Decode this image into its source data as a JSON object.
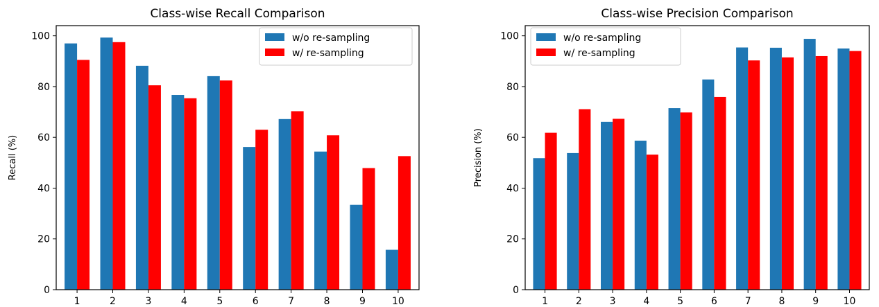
{
  "chart_data": [
    {
      "type": "bar",
      "title": "Class-wise Recall Comparison",
      "xlabel": "",
      "ylabel": "Recall (%)",
      "categories": [
        "1",
        "2",
        "3",
        "4",
        "5",
        "6",
        "7",
        "8",
        "9",
        "10"
      ],
      "ylim": [
        0,
        104
      ],
      "yticks": [
        "0",
        "20",
        "40",
        "60",
        "80",
        "100"
      ],
      "legend_position": "upper right",
      "series": [
        {
          "name": "w/o re-sampling",
          "color": "#1f77b4",
          "values": [
            97.0,
            99.3,
            88.2,
            76.7,
            84.1,
            56.2,
            67.2,
            54.4,
            33.4,
            15.7
          ]
        },
        {
          "name": "w/ re-sampling",
          "color": "#ff0000",
          "values": [
            90.5,
            97.5,
            80.5,
            75.4,
            82.4,
            63.0,
            70.3,
            60.8,
            47.9,
            52.6
          ]
        }
      ]
    },
    {
      "type": "bar",
      "title": "Class-wise Precision Comparison",
      "xlabel": "",
      "ylabel": "Precision (%)",
      "categories": [
        "1",
        "2",
        "3",
        "4",
        "5",
        "6",
        "7",
        "8",
        "9",
        "10"
      ],
      "ylim": [
        0,
        104
      ],
      "yticks": [
        "0",
        "20",
        "40",
        "60",
        "80",
        "100"
      ],
      "legend_position": "upper left",
      "series": [
        {
          "name": "w/o re-sampling",
          "color": "#1f77b4",
          "values": [
            51.8,
            53.8,
            66.1,
            58.7,
            71.5,
            82.8,
            95.4,
            95.3,
            98.8,
            95.0
          ]
        },
        {
          "name": "w/ re-sampling",
          "color": "#ff0000",
          "values": [
            61.8,
            71.1,
            67.3,
            53.2,
            69.8,
            75.9,
            90.3,
            91.5,
            92.0,
            94.0
          ]
        }
      ]
    }
  ]
}
